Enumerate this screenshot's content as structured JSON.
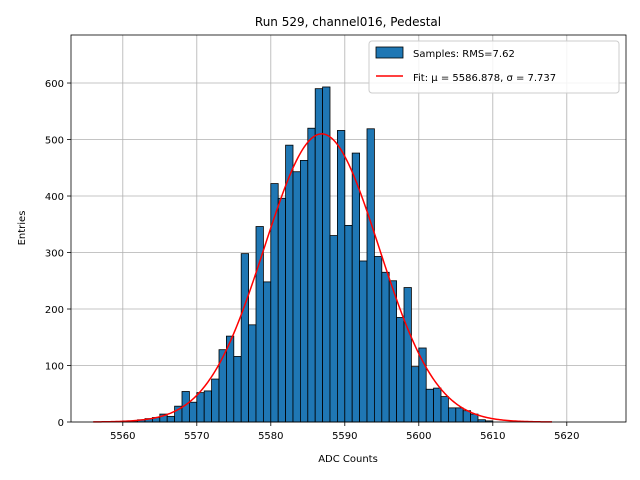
{
  "chart_data": {
    "type": "bar",
    "title": "Run 529, channel016, Pedestal",
    "xlabel": "ADC Counts",
    "ylabel": "Entries",
    "xlim": [
      5553,
      5628
    ],
    "ylim": [
      0,
      685
    ],
    "xticks": [
      5560,
      5570,
      5580,
      5590,
      5600,
      5610,
      5620
    ],
    "yticks": [
      0,
      100,
      200,
      300,
      400,
      500,
      600
    ],
    "grid": true,
    "legend_position": "upper right",
    "histogram": {
      "name": "Samples: RMS=7.62",
      "color": "#1f77b4",
      "edge_color": "#000000",
      "bin_edges": [
        5560,
        5561,
        5562,
        5563,
        5564,
        5565,
        5566,
        5567,
        5568,
        5569,
        5570,
        5571,
        5572,
        5573,
        5574,
        5575,
        5576,
        5577,
        5578,
        5579,
        5580,
        5581,
        5582,
        5583,
        5584,
        5585,
        5586,
        5587,
        5588,
        5589,
        5590,
        5591,
        5592,
        5593,
        5594,
        5595,
        5596,
        5597,
        5598,
        5599,
        5600,
        5601,
        5602,
        5603,
        5604,
        5605,
        5606,
        5607,
        5608,
        5609,
        5610
      ],
      "counts": [
        2,
        2,
        4,
        6,
        8,
        14,
        10,
        28,
        54,
        35,
        52,
        55,
        76,
        128,
        152,
        116,
        298,
        172,
        346,
        248,
        422,
        396,
        490,
        443,
        463,
        520,
        590,
        593,
        330,
        516,
        348,
        476,
        285,
        519,
        293,
        265,
        250,
        185,
        238,
        98,
        131,
        58,
        60,
        45,
        25,
        25,
        20,
        14,
        4,
        2
      ]
    },
    "fit": {
      "name": "Fit: μ = 5586.878, σ = 7.737",
      "color": "#ff0000",
      "mu": 5586.878,
      "sigma": 7.737,
      "amplitude": 510,
      "x_range": [
        5556,
        5618
      ]
    }
  }
}
